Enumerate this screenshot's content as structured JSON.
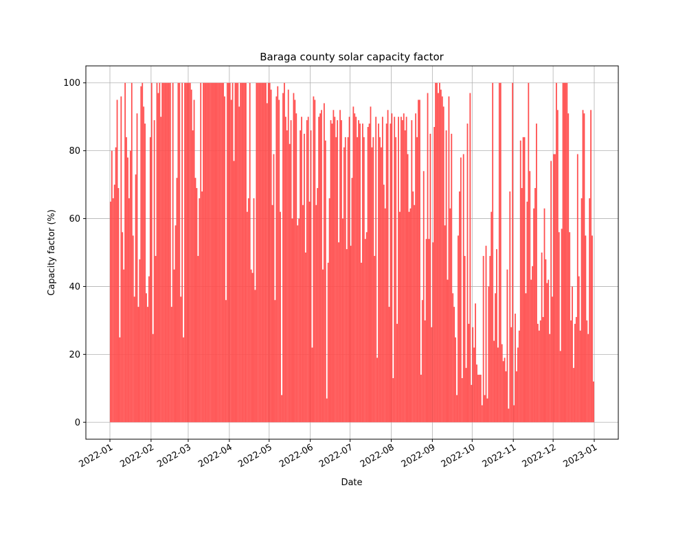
{
  "chart_data": {
    "type": "area-steps",
    "title": "Baraga county solar capacity factor",
    "xlabel": "Date",
    "ylabel": "Capacity factor (%)",
    "color": "#ff4d4d",
    "grid": true,
    "ylim": [
      -5,
      105
    ],
    "yticks": [
      0,
      20,
      40,
      60,
      80,
      100
    ],
    "xticks": [
      "2022-01",
      "2022-02",
      "2022-03",
      "2022-04",
      "2022-05",
      "2022-06",
      "2022-07",
      "2022-08",
      "2022-09",
      "2022-10",
      "2022-11",
      "2022-12",
      "2023-01"
    ],
    "values": [
      [
        65,
        80,
        66,
        70,
        81,
        95,
        69,
        25,
        96,
        56,
        45,
        100,
        84,
        78,
        66,
        80,
        100,
        55,
        37,
        73,
        91,
        34,
        48,
        99,
        100,
        93,
        88,
        38,
        34,
        43,
        84
      ],
      [
        100,
        26,
        89,
        49,
        100,
        97,
        100,
        90,
        100,
        100,
        100,
        100,
        100,
        100,
        100,
        34,
        100,
        45,
        58,
        72,
        100,
        100,
        37,
        100,
        25,
        100,
        100,
        100
      ],
      [
        100,
        100,
        98,
        86,
        95,
        72,
        69,
        49,
        66,
        100,
        68,
        100,
        100,
        100,
        100,
        100,
        100,
        100,
        100,
        100,
        100,
        100,
        100,
        100,
        100,
        100,
        100,
        96,
        36,
        100,
        100
      ],
      [
        100,
        95,
        100,
        77,
        100,
        100,
        100,
        93,
        100,
        100,
        100,
        100,
        100,
        62,
        66,
        100,
        45,
        44,
        66,
        39,
        100,
        100,
        100,
        100,
        100,
        100,
        100,
        100,
        94,
        100
      ],
      [
        100,
        98,
        64,
        79,
        36,
        96,
        99,
        95,
        62,
        8,
        97,
        100,
        90,
        86,
        98,
        82,
        89,
        60,
        97,
        95,
        91,
        58,
        60,
        86,
        90,
        64,
        85,
        50,
        89,
        90,
        65
      ],
      [
        86,
        22,
        96,
        95,
        64,
        69,
        90,
        91,
        92,
        45,
        94,
        83,
        7,
        47,
        66,
        89,
        88,
        92,
        90,
        84,
        89,
        53,
        92,
        89,
        60,
        81,
        84,
        51,
        84,
        90
      ],
      [
        52,
        72,
        93,
        91,
        90,
        84,
        89,
        88,
        47,
        88,
        84,
        54,
        56,
        87,
        88,
        93,
        81,
        84,
        49,
        90,
        19,
        88,
        84,
        81,
        90,
        70,
        63,
        88,
        92,
        34,
        88
      ],
      [
        91,
        13,
        90,
        84,
        29,
        90,
        62,
        90,
        89,
        91,
        86,
        90,
        79,
        62,
        63,
        89,
        68,
        64,
        91,
        84,
        95,
        95,
        14,
        36,
        74,
        30,
        54,
        97,
        54,
        85,
        28
      ],
      [
        53,
        87,
        100,
        100,
        97,
        100,
        98,
        96,
        93,
        58,
        86,
        42,
        96,
        63,
        85,
        38,
        34,
        25,
        8,
        55,
        68,
        78,
        13,
        79,
        49,
        16,
        88,
        29,
        97,
        11
      ],
      [
        28,
        22,
        35,
        17,
        14,
        14,
        14,
        5,
        49,
        8,
        52,
        7,
        40,
        49,
        62,
        100,
        24,
        38,
        51,
        22,
        100,
        100,
        23,
        18,
        19,
        15,
        45,
        4,
        68,
        28,
        100
      ],
      [
        5,
        32,
        15,
        22,
        27,
        83,
        69,
        84,
        84,
        38,
        65,
        100,
        74,
        42,
        46,
        63,
        69,
        88,
        29,
        27,
        30,
        50,
        31,
        63,
        48,
        41,
        42,
        26,
        77,
        37
      ],
      [
        79,
        79,
        100,
        92,
        56,
        21,
        57,
        100,
        100,
        100,
        100,
        91,
        56,
        30,
        40,
        16,
        29,
        31,
        79,
        43,
        27,
        66,
        92,
        91,
        55,
        30,
        26,
        66,
        92,
        55,
        12
      ]
    ]
  }
}
